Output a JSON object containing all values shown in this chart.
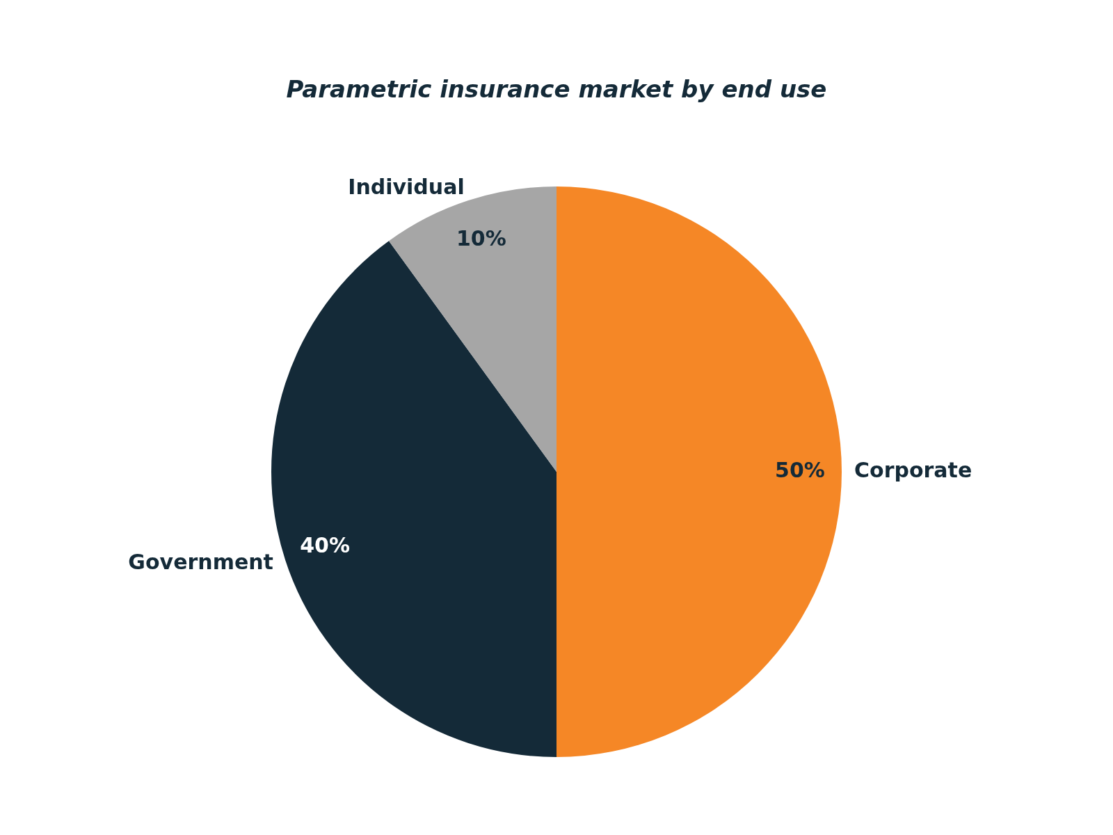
{
  "chart_data": {
    "type": "pie",
    "title": "Parametric insurance market by end use",
    "categories": [
      "Corporate",
      "Government",
      "Individual"
    ],
    "values": [
      50,
      40,
      10
    ],
    "colors": [
      "#f58726",
      "#142a38",
      "#a6a6a6"
    ],
    "value_labels": [
      "50%",
      "40%",
      "10%"
    ],
    "legend": false
  }
}
